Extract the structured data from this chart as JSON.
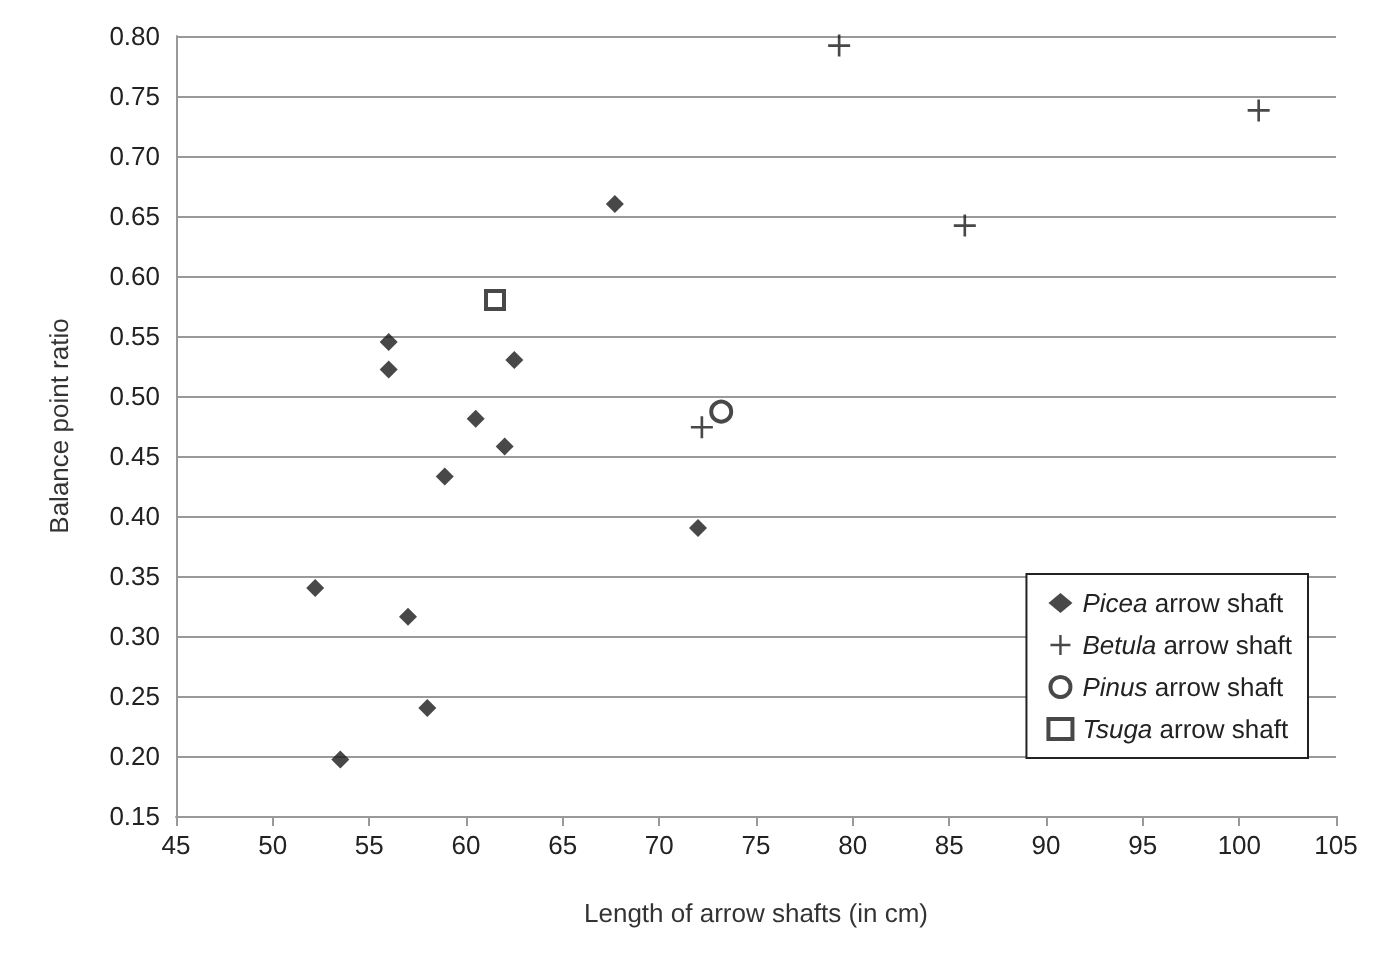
{
  "chart_data": {
    "type": "scatter",
    "xlabel": "Length of arrow shafts (in cm)",
    "ylabel": "Balance point ratio",
    "xlim": [
      45,
      105
    ],
    "xticks": [
      45,
      50,
      55,
      60,
      65,
      70,
      75,
      80,
      85,
      90,
      95,
      100,
      105
    ],
    "ylim": [
      0.15,
      0.8
    ],
    "yticks": [
      {
        "value": 0.15,
        "label": "0.15"
      },
      {
        "value": 0.2,
        "label": "0.20"
      },
      {
        "value": 0.25,
        "label": "0.25"
      },
      {
        "value": 0.3,
        "label": "0.30"
      },
      {
        "value": 0.35,
        "label": "0.35"
      },
      {
        "value": 0.4,
        "label": "0.40"
      },
      {
        "value": 0.45,
        "label": "0.45"
      },
      {
        "value": 0.5,
        "label": "0.50"
      },
      {
        "value": 0.55,
        "label": "0.55"
      },
      {
        "value": 0.6,
        "label": "0.60"
      },
      {
        "value": 0.65,
        "label": "0.65"
      },
      {
        "value": 0.7,
        "label": "0.70"
      },
      {
        "value": 0.75,
        "label": "0.75"
      },
      {
        "value": 0.8,
        "label": "0.80"
      }
    ],
    "grid": "y",
    "legend": "bottom right",
    "series": [
      {
        "name": "Picea arrow shaft",
        "color": "#1a1a1a",
        "marker": "diamond",
        "x": [
          52.2,
          53.5,
          56,
          56,
          57,
          58,
          58.9,
          60.5,
          62,
          62.5,
          67.7,
          72
        ],
        "values": [
          0.34,
          0.197,
          0.545,
          0.522,
          0.316,
          0.24,
          0.433,
          0.481,
          0.458,
          0.53,
          0.66,
          0.39
        ]
      },
      {
        "name": "Betula arrow shaft",
        "color": "#1a1a1a",
        "marker": "cross",
        "x": [
          72.2,
          79.3,
          85.8,
          101
        ],
        "values": [
          0.474,
          0.792,
          0.642,
          0.738
        ]
      },
      {
        "name": "Pinus arrow shaft",
        "color": "#1a1a1a",
        "marker": "circle",
        "x": [
          73.2
        ],
        "values": [
          0.487
        ]
      },
      {
        "name": "Tsuga arrow shaft",
        "color": "#1a1a1a",
        "marker": "square",
        "x": [
          61.5
        ],
        "values": [
          0.58
        ]
      }
    ]
  }
}
